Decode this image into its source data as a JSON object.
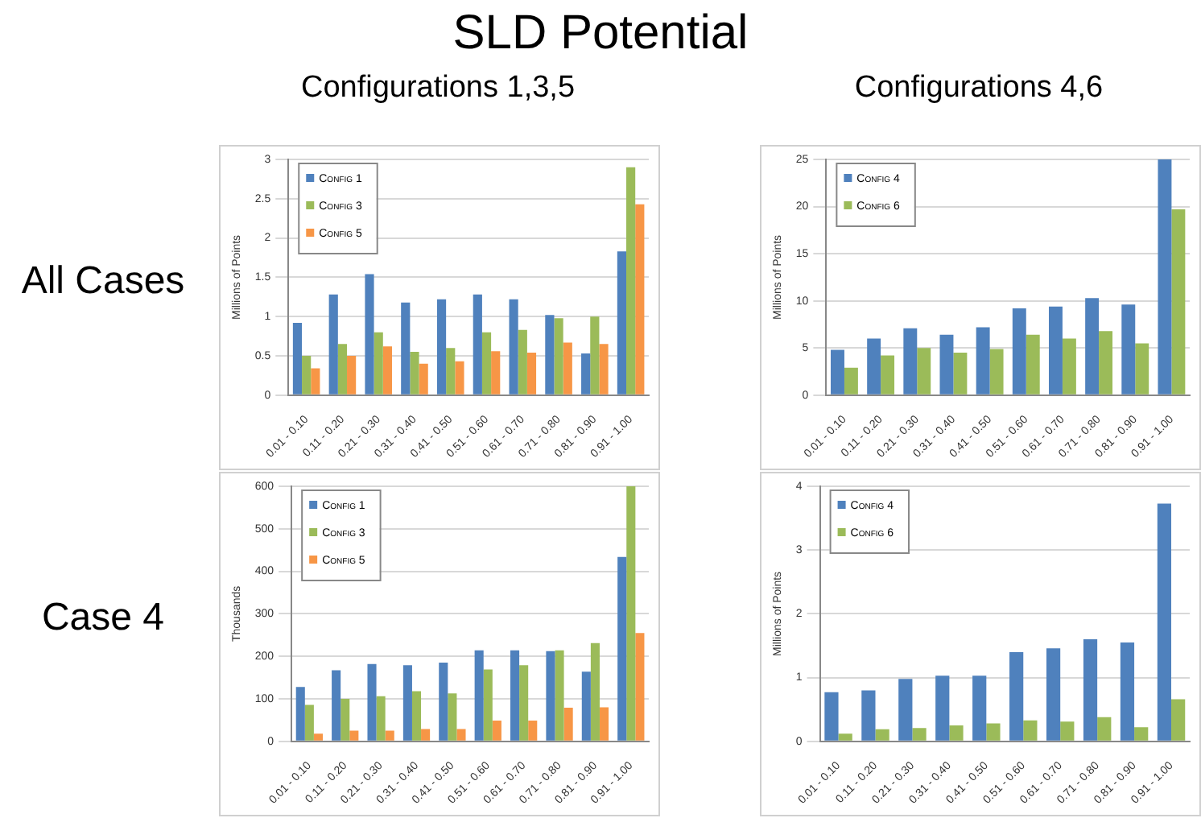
{
  "chart_data": [
    {
      "type": "bar",
      "title": "SLD Potential",
      "subtitle": "Configurations 1,3,5",
      "annotations": [
        "All Cases"
      ],
      "ylabel": "Millions of Points",
      "categories": [
        "0.01 - 0.10",
        "0.11 - 0.20",
        "0.21 - 0.30",
        "0.31 - 0.40",
        "0.41 - 0.50",
        "0.51 - 0.60",
        "0.61 - 0.70",
        "0.71 - 0.80",
        "0.81 - 0.90",
        "0.91 - 1.00"
      ],
      "series": [
        {
          "name": "Config 1",
          "color": "#4f81bd",
          "values": [
            0.92,
            1.28,
            1.54,
            1.18,
            1.22,
            1.28,
            1.22,
            1.02,
            0.53,
            1.83
          ]
        },
        {
          "name": "Config 3",
          "color": "#9bbb59",
          "values": [
            0.5,
            0.65,
            0.8,
            0.55,
            0.6,
            0.8,
            0.83,
            0.98,
            1.0,
            2.9
          ]
        },
        {
          "name": "Config 5",
          "color": "#f79646",
          "values": [
            0.34,
            0.5,
            0.62,
            0.4,
            0.43,
            0.56,
            0.54,
            0.67,
            0.65,
            2.43
          ]
        }
      ],
      "ylim": [
        0,
        3
      ],
      "yticks": [
        0,
        0.5,
        1,
        1.5,
        2,
        2.5,
        3
      ],
      "grid": "y",
      "legend": "top left"
    },
    {
      "type": "bar",
      "subtitle": "Configurations 4,6",
      "ylabel": "Millions of Points",
      "categories": [
        "0.01 - 0.10",
        "0.11 - 0.20",
        "0.21 - 0.30",
        "0.31 - 0.40",
        "0.41 - 0.50",
        "0.51 - 0.60",
        "0.61 - 0.70",
        "0.71 - 0.80",
        "0.81 - 0.90",
        "0.91 - 1.00"
      ],
      "series": [
        {
          "name": "Config 4",
          "color": "#4f81bd",
          "values": [
            4.8,
            6.0,
            7.1,
            6.4,
            7.2,
            9.2,
            9.4,
            10.3,
            9.6,
            25
          ]
        },
        {
          "name": "Config 6",
          "color": "#9bbb59",
          "values": [
            2.9,
            4.2,
            5.0,
            4.5,
            4.9,
            6.4,
            6.0,
            6.8,
            5.5,
            19.7
          ]
        }
      ],
      "ylim": [
        0,
        25
      ],
      "yticks": [
        0,
        5,
        10,
        15,
        20,
        25
      ],
      "grid": "y",
      "legend": "top left"
    },
    {
      "type": "bar",
      "annotations": [
        "Case 4"
      ],
      "ylabel": "Thousands",
      "categories": [
        "0.01 - 0.10",
        "0.11 - 0.20",
        "0.21 - 0.30",
        "0.31 - 0.40",
        "0.41 - 0.50",
        "0.51 - 0.60",
        "0.61 - 0.70",
        "0.71 - 0.80",
        "0.81 - 0.90",
        "0.91 - 1.00"
      ],
      "series": [
        {
          "name": "Config 1",
          "color": "#4f81bd",
          "values": [
            128,
            167,
            182,
            179,
            185,
            214,
            214,
            212,
            164,
            434
          ]
        },
        {
          "name": "Config 3",
          "color": "#9bbb59",
          "values": [
            86,
            100,
            106,
            118,
            113,
            169,
            179,
            214,
            231,
            600
          ]
        },
        {
          "name": "Config 5",
          "color": "#f79646",
          "values": [
            18,
            25,
            25,
            29,
            29,
            49,
            49,
            79,
            80,
            255
          ]
        }
      ],
      "ylim": [
        0,
        600
      ],
      "yticks": [
        0,
        100,
        200,
        300,
        400,
        500,
        600
      ],
      "grid": "y",
      "legend": "top left"
    },
    {
      "type": "bar",
      "ylabel": "Millions of Points",
      "categories": [
        "0.01 - 0.10",
        "0.11 - 0.20",
        "0.21 - 0.30",
        "0.31 - 0.40",
        "0.41 - 0.50",
        "0.51 - 0.60",
        "0.61 - 0.70",
        "0.71 - 0.80",
        "0.81 - 0.90",
        "0.91 - 1.00"
      ],
      "series": [
        {
          "name": "Config 4",
          "color": "#4f81bd",
          "values": [
            0.77,
            0.8,
            0.98,
            1.03,
            1.03,
            1.4,
            1.46,
            1.6,
            1.55,
            3.73
          ]
        },
        {
          "name": "Config 6",
          "color": "#9bbb59",
          "values": [
            0.12,
            0.19,
            0.21,
            0.25,
            0.28,
            0.33,
            0.31,
            0.38,
            0.22,
            0.66
          ]
        }
      ],
      "ylim": [
        0,
        4
      ],
      "yticks": [
        0,
        1,
        2,
        3,
        4
      ],
      "grid": "y",
      "legend": "top left"
    }
  ]
}
